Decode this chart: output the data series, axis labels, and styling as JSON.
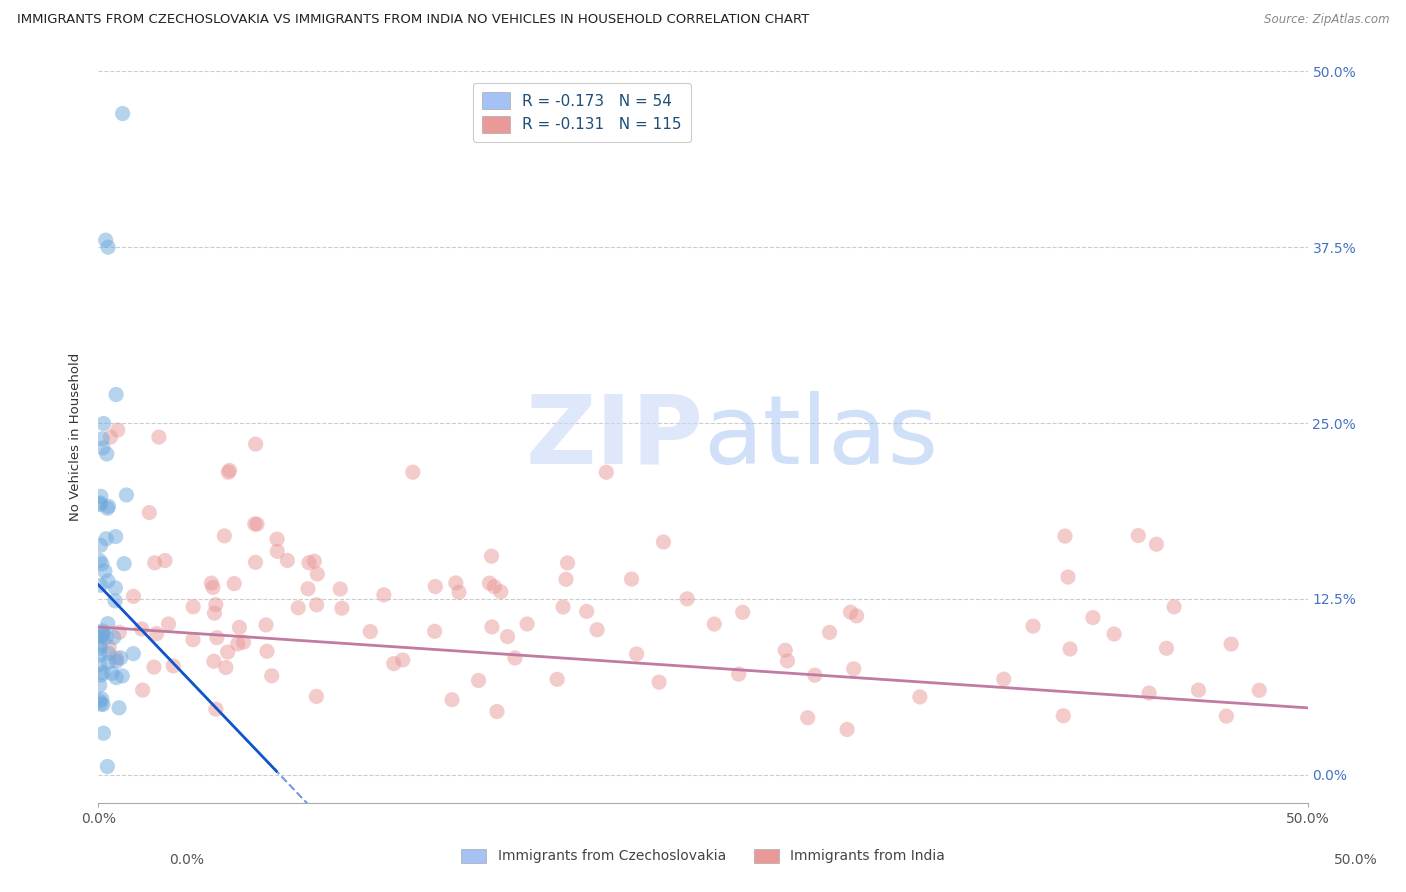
{
  "title": "IMMIGRANTS FROM CZECHOSLOVAKIA VS IMMIGRANTS FROM INDIA NO VEHICLES IN HOUSEHOLD CORRELATION CHART",
  "source": "Source: ZipAtlas.com",
  "ylabel": "No Vehicles in Household",
  "watermark": "ZIPatlas",
  "legend_items": [
    {
      "label": "R = -0.173   N = 54",
      "color": "#a8c8f0"
    },
    {
      "label": "R = -0.131   N = 115",
      "color": "#f5a0b0"
    }
  ],
  "bottom_legend": [
    {
      "label": "Immigrants from Czechoslovakia",
      "color": "#a8c8f0"
    },
    {
      "label": "Immigrants from India",
      "color": "#f5a0b0"
    }
  ],
  "xlim": [
    0.0,
    0.5
  ],
  "ylim": [
    0.0,
    0.5
  ],
  "ytick_vals": [
    0.0,
    0.125,
    0.25,
    0.375,
    0.5
  ],
  "ytick_labels": [
    "0.0%",
    "12.5%",
    "25.0%",
    "37.5%",
    "50.0%"
  ],
  "xtick_vals": [
    0.0,
    0.5
  ],
  "xtick_labels": [
    "0.0%",
    "50.0%"
  ],
  "blue_color": "#6fa8dc",
  "pink_color": "#ea9999",
  "legend_blue_fill": "#a4c2f4",
  "legend_pink_fill": "#ea9999",
  "title_fontsize": 9.5,
  "watermark_fontsize": 60
}
